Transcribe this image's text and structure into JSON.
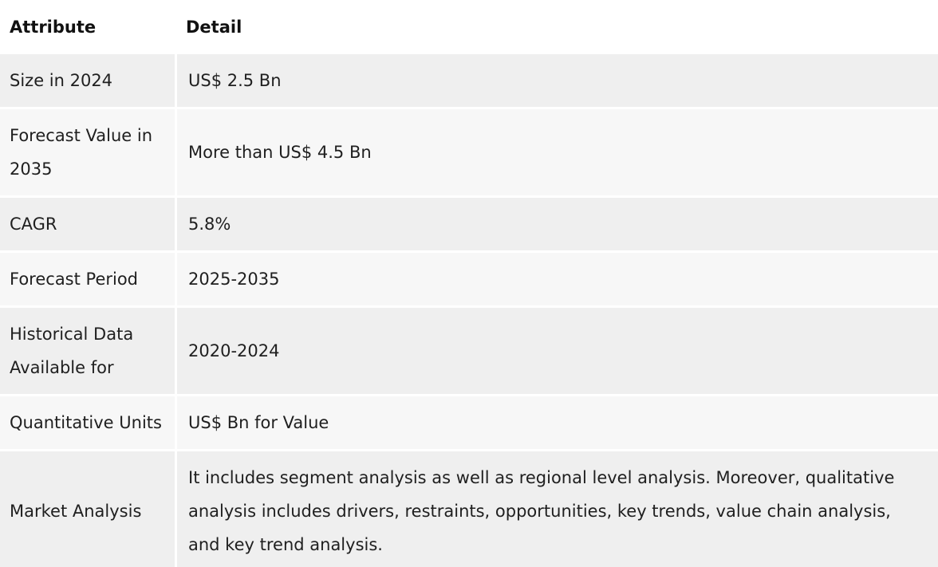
{
  "table": {
    "headers": {
      "attribute": "Attribute",
      "detail": "Detail"
    },
    "rows": [
      {
        "attribute": "Size in 2024",
        "detail": "US$ 2.5 Bn"
      },
      {
        "attribute": "Forecast Value in 2035",
        "detail": "More than US$ 4.5 Bn"
      },
      {
        "attribute": "CAGR",
        "detail": "5.8%"
      },
      {
        "attribute": "Forecast Period",
        "detail": "2025-2035"
      },
      {
        "attribute": "Historical Data Available for",
        "detail": "2020-2024"
      },
      {
        "attribute": "Quantitative Units",
        "detail": "US$ Bn for Value"
      },
      {
        "attribute": "Market Analysis",
        "detail": "It includes segment analysis as well as regional level analysis. Moreover, qualitative analysis includes drivers, restraints, opportunities, key trends, value chain analysis, and key trend analysis."
      }
    ]
  }
}
